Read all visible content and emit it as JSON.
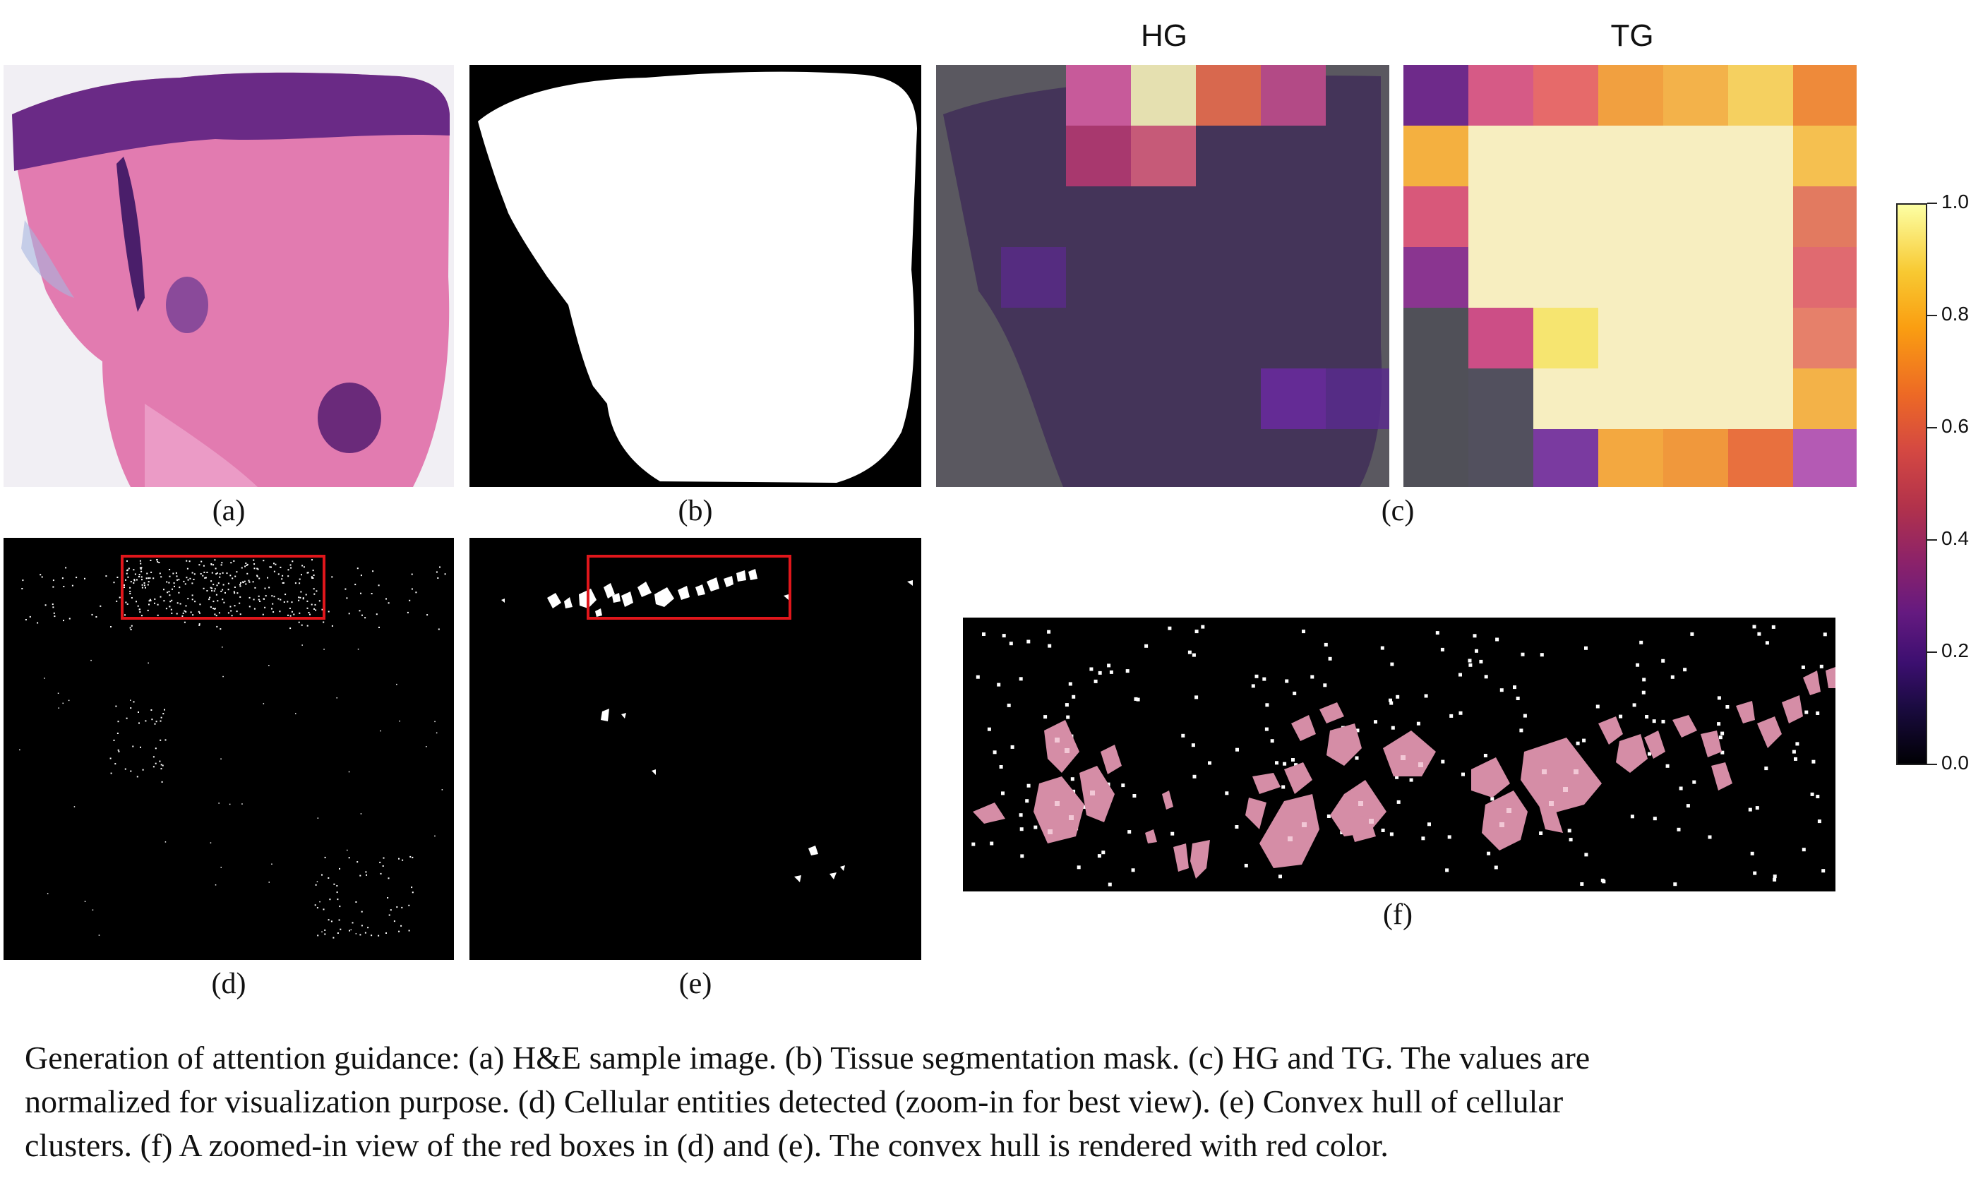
{
  "panels": {
    "a": {
      "label": "(a)"
    },
    "b": {
      "label": "(b)"
    },
    "c": {
      "label": "(c)",
      "title_left": "HG",
      "title_right": "TG"
    },
    "d": {
      "label": "(d)"
    },
    "e": {
      "label": "(e)"
    },
    "f": {
      "label": "(f)"
    }
  },
  "colorbar": {
    "ticks": [
      "1.0",
      "0.8",
      "0.6",
      "0.4",
      "0.2",
      "0.0"
    ],
    "colormap": "inferno"
  },
  "colors": {
    "he_pink": "#e27bb0",
    "he_purple": "#5a2a7a",
    "highlight_box": "#e0161b",
    "hull_fill": "#d58da6"
  },
  "caption": {
    "line1": "Generation of attention guidance: (a) H&E sample image. (b) Tissue segmentation mask. (c) HG and TG. The values are",
    "line2": "normalized for visualization purpose. (d) Cellular entities detected (zoom-in for best view). (e) Convex hull of cellular",
    "line3": "clusters. (f) A zoomed-in view of the red boxes in (d) and (e). The convex hull is rendered with red color."
  }
}
